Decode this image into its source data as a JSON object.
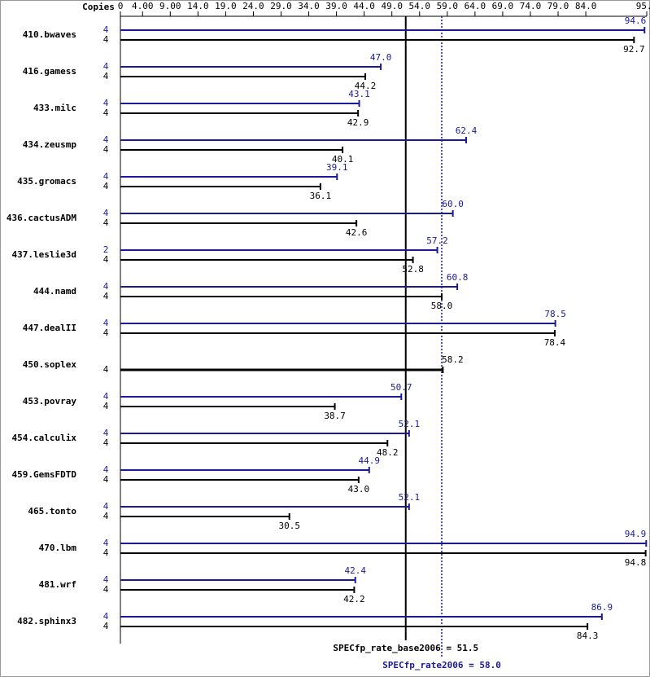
{
  "chart_data": {
    "type": "bar",
    "orientation": "horizontal",
    "copies_label": "Copies",
    "categories": [
      "410.bwaves",
      "416.gamess",
      "433.milc",
      "434.zeusmp",
      "435.gromacs",
      "436.cactusADM",
      "437.leslie3d",
      "444.namd",
      "447.dealII",
      "450.soplex",
      "453.povray",
      "454.calculix",
      "459.GemsFDTD",
      "465.tonto",
      "470.lbm",
      "481.wrf",
      "482.sphinx3"
    ],
    "series": [
      {
        "color": "#1a1a99",
        "copies": [
          4,
          4,
          4,
          4,
          4,
          4,
          2,
          4,
          4,
          null,
          4,
          4,
          4,
          4,
          4,
          4,
          4
        ],
        "values": [
          94.6,
          47.0,
          43.1,
          62.4,
          39.1,
          60.0,
          57.2,
          60.8,
          78.5,
          null,
          50.7,
          52.1,
          44.9,
          52.1,
          94.9,
          42.4,
          86.9
        ],
        "value_labels": [
          "94.6",
          "47.0",
          "43.1",
          "62.4",
          "39.1",
          "60.0",
          "57.2",
          "60.8",
          "78.5",
          null,
          "50.7",
          "52.1",
          "44.9",
          "52.1",
          "94.9",
          "42.4",
          "86.9"
        ]
      },
      {
        "color": "#000000",
        "copies": [
          4,
          4,
          4,
          4,
          4,
          4,
          4,
          4,
          4,
          4,
          4,
          4,
          4,
          4,
          4,
          4,
          4
        ],
        "values": [
          92.7,
          44.2,
          42.9,
          40.1,
          36.1,
          42.6,
          52.8,
          58.0,
          78.4,
          58.2,
          38.7,
          48.2,
          43.0,
          30.5,
          94.8,
          42.2,
          84.3
        ],
        "value_labels": [
          "92.7",
          "44.2",
          "42.9",
          "40.1",
          "36.1",
          "42.6",
          "52.8",
          "58.0",
          "78.4",
          "58.2",
          "38.7",
          "48.2",
          "43.0",
          "30.5",
          "94.8",
          "42.2",
          "84.3"
        ]
      }
    ],
    "xlim": [
      0,
      95
    ],
    "xticks": [
      0,
      {
        "value": 4,
        "label": "4.00"
      },
      {
        "value": 9,
        "label": "9.00"
      },
      {
        "value": 14,
        "label": "14.0"
      },
      {
        "value": 19,
        "label": "19.0"
      },
      {
        "value": 24,
        "label": "24.0"
      },
      {
        "value": 29,
        "label": "29.0"
      },
      {
        "value": 34,
        "label": "34.0"
      },
      {
        "value": 39,
        "label": "39.0"
      },
      {
        "value": 44,
        "label": "44.0"
      },
      {
        "value": 49,
        "label": "49.0"
      },
      {
        "value": 54,
        "label": "54.0"
      },
      {
        "value": 59,
        "label": "59.0"
      },
      {
        "value": 64,
        "label": "64.0"
      },
      {
        "value": 69,
        "label": "69.0"
      },
      {
        "value": 74,
        "label": "74.0"
      },
      {
        "value": 79,
        "label": "79.0"
      },
      {
        "value": 84,
        "label": "84.0"
      },
      {
        "value": 95,
        "label": "95.0"
      }
    ],
    "reference_lines": [
      {
        "value": 51.5,
        "label": "SPECfp_rate_base2006 = 51.5",
        "color": "#000000",
        "style": "solid"
      },
      {
        "value": 58.0,
        "label": "SPECfp_rate2006 = 58.0",
        "color": "#1a1a99",
        "style": "dotted"
      }
    ]
  }
}
